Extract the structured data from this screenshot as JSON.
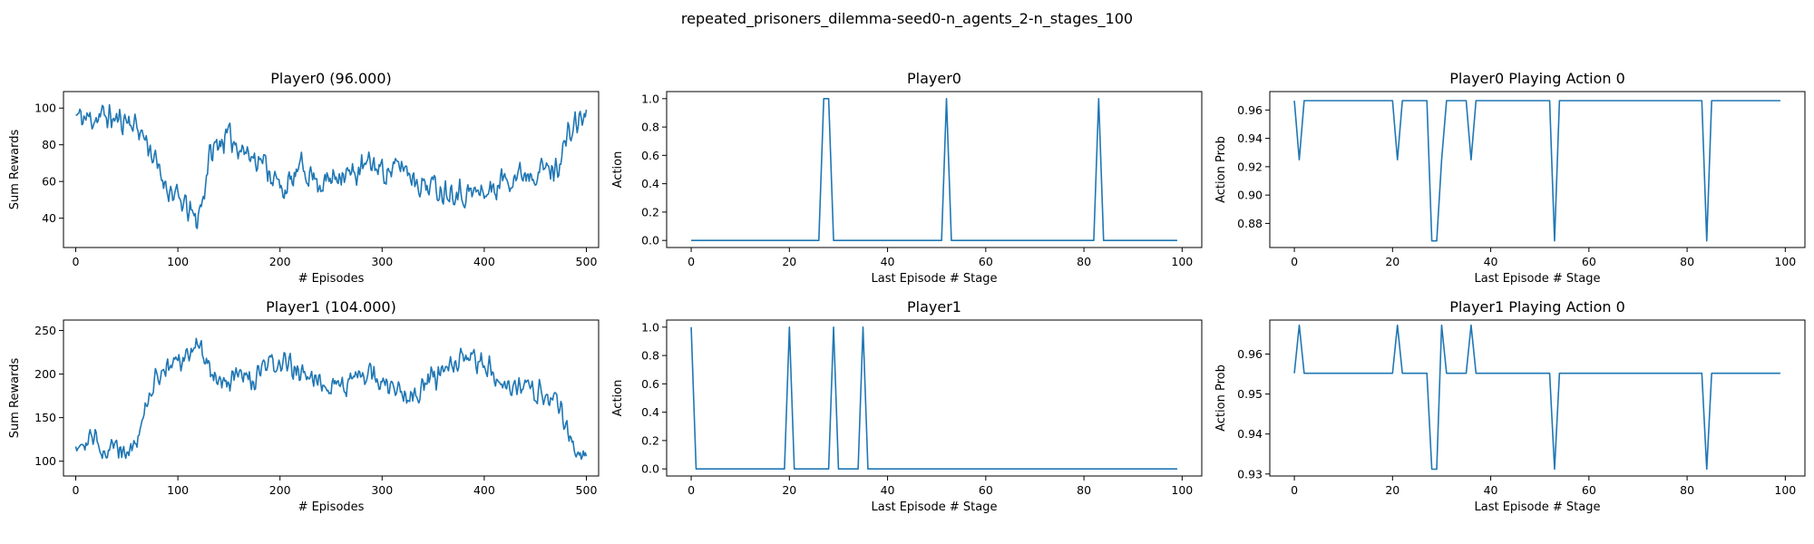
{
  "figure": {
    "suptitle": "repeated_prisoners_dilemma-seed0-n_agents_2-n_stages_100"
  },
  "colors": {
    "series": "#1f77b4",
    "axes": "#000000",
    "background": "#ffffff"
  },
  "chart_data": [
    {
      "type": "line",
      "title": "Player0 (96.000)",
      "xlabel": "# Episodes",
      "ylabel": "Sum Rewards",
      "xlim": [
        -12,
        512
      ],
      "ylim": [
        24,
        109
      ],
      "xticks": [
        0,
        100,
        200,
        300,
        400,
        500
      ],
      "xticklabels": [
        "0",
        "100",
        "200",
        "300",
        "400",
        "500"
      ],
      "yticks": [
        40,
        60,
        80,
        100
      ],
      "yticklabels": [
        "40",
        "60",
        "80",
        "100"
      ],
      "noise": {
        "seed": 11,
        "amp": 9
      },
      "series": [
        {
          "x": [
            0,
            10,
            20,
            30,
            40,
            50,
            60,
            70,
            80,
            90,
            100,
            110,
            118,
            125,
            130,
            140,
            150,
            160,
            170,
            180,
            190,
            200,
            210,
            220,
            230,
            240,
            250,
            260,
            270,
            280,
            290,
            300,
            310,
            320,
            330,
            340,
            350,
            360,
            370,
            380,
            390,
            400,
            410,
            420,
            430,
            440,
            450,
            460,
            470,
            480,
            490,
            500
          ],
          "y": [
            96,
            94,
            95,
            96,
            93,
            94,
            90,
            82,
            67,
            57,
            50,
            45,
            38,
            52,
            72,
            82,
            84,
            80,
            74,
            73,
            66,
            56,
            58,
            68,
            64,
            59,
            61,
            66,
            63,
            67,
            70,
            66,
            66,
            69,
            63,
            58,
            58,
            55,
            56,
            53,
            54,
            54,
            56,
            62,
            63,
            65,
            66,
            67,
            66,
            82,
            92,
            96
          ]
        }
      ]
    },
    {
      "type": "line",
      "title": "Player0",
      "xlabel": "Last Episode # Stage",
      "ylabel": "Action",
      "xlim": [
        -5,
        104
      ],
      "ylim": [
        -0.05,
        1.05
      ],
      "xticks": [
        0,
        20,
        40,
        60,
        80,
        100
      ],
      "xticklabels": [
        "0",
        "20",
        "40",
        "60",
        "80",
        "100"
      ],
      "yticks": [
        0,
        0.2,
        0.4,
        0.6,
        0.8,
        1.0
      ],
      "yticklabels": [
        "0.0",
        "0.2",
        "0.4",
        "0.6",
        "0.8",
        "1.0"
      ],
      "series": [
        {
          "x": [
            0,
            26,
            27,
            28,
            29,
            51,
            52,
            53,
            82,
            83,
            84,
            99
          ],
          "y": [
            0,
            0,
            1,
            1,
            0,
            0,
            1,
            0,
            0,
            1,
            0,
            0
          ]
        }
      ]
    },
    {
      "type": "line",
      "title": "Player0 Playing Action 0",
      "xlabel": "Last Episode # Stage",
      "ylabel": "Action Prob",
      "xlim": [
        -5,
        104
      ],
      "ylim": [
        0.863,
        0.973
      ],
      "xticks": [
        0,
        20,
        40,
        60,
        80,
        100
      ],
      "xticklabels": [
        "0",
        "20",
        "40",
        "60",
        "80",
        "100"
      ],
      "yticks": [
        0.88,
        0.9,
        0.92,
        0.94,
        0.96
      ],
      "yticklabels": [
        "0.88",
        "0.90",
        "0.92",
        "0.94",
        "0.96"
      ],
      "series": [
        {
          "x": [
            0,
            1,
            2,
            20,
            21,
            22,
            27,
            28,
            29,
            30,
            31,
            35,
            36,
            37,
            52,
            53,
            54,
            83,
            84,
            85,
            99
          ],
          "y": [
            0.9666,
            0.9249,
            0.9666,
            0.9666,
            0.9249,
            0.9666,
            0.9666,
            0.8677,
            0.8677,
            0.9249,
            0.9666,
            0.9666,
            0.9249,
            0.9666,
            0.9666,
            0.8677,
            0.9666,
            0.9666,
            0.8677,
            0.9666,
            0.9666
          ]
        }
      ]
    },
    {
      "type": "line",
      "title": "Player1 (104.000)",
      "xlabel": "# Episodes",
      "ylabel": "Sum Rewards",
      "xlim": [
        -12,
        512
      ],
      "ylim": [
        83,
        262
      ],
      "xticks": [
        0,
        100,
        200,
        300,
        400,
        500
      ],
      "xticklabels": [
        "0",
        "100",
        "200",
        "300",
        "400",
        "500"
      ],
      "yticks": [
        100,
        150,
        200,
        250
      ],
      "yticklabels": [
        "100",
        "150",
        "200",
        "250"
      ],
      "noise": {
        "seed": 29,
        "amp": 16
      },
      "series": [
        {
          "x": [
            0,
            10,
            20,
            30,
            40,
            50,
            60,
            70,
            80,
            90,
            100,
            110,
            118,
            125,
            135,
            145,
            155,
            165,
            175,
            185,
            195,
            205,
            215,
            225,
            235,
            245,
            255,
            265,
            275,
            285,
            295,
            305,
            315,
            325,
            335,
            345,
            355,
            365,
            375,
            385,
            395,
            405,
            415,
            425,
            435,
            445,
            455,
            465,
            475,
            485,
            492,
            500
          ],
          "y": [
            122,
            125,
            124,
            112,
            118,
            113,
            122,
            165,
            200,
            208,
            212,
            218,
            240,
            222,
            200,
            188,
            196,
            195,
            190,
            208,
            212,
            212,
            207,
            195,
            195,
            190,
            188,
            190,
            193,
            200,
            196,
            185,
            184,
            180,
            178,
            190,
            198,
            207,
            214,
            216,
            212,
            208,
            196,
            188,
            185,
            182,
            178,
            172,
            160,
            125,
            108,
            104
          ]
        }
      ]
    },
    {
      "type": "line",
      "title": "Player1",
      "xlabel": "Last Episode # Stage",
      "ylabel": "Action",
      "xlim": [
        -5,
        104
      ],
      "ylim": [
        -0.05,
        1.05
      ],
      "xticks": [
        0,
        20,
        40,
        60,
        80,
        100
      ],
      "xticklabels": [
        "0",
        "20",
        "40",
        "60",
        "80",
        "100"
      ],
      "yticks": [
        0,
        0.2,
        0.4,
        0.6,
        0.8,
        1.0
      ],
      "yticklabels": [
        "0.0",
        "0.2",
        "0.4",
        "0.6",
        "0.8",
        "1.0"
      ],
      "series": [
        {
          "x": [
            0,
            1,
            19,
            20,
            21,
            28,
            29,
            30,
            34,
            35,
            36,
            99
          ],
          "y": [
            1,
            0,
            0,
            1,
            0,
            0,
            1,
            0,
            0,
            1,
            0,
            0
          ]
        }
      ]
    },
    {
      "type": "line",
      "title": "Player1 Playing Action 0",
      "xlabel": "Last Episode # Stage",
      "ylabel": "Action Prob",
      "xlim": [
        -5,
        104
      ],
      "ylim": [
        0.9295,
        0.9685
      ],
      "xticks": [
        0,
        20,
        40,
        60,
        80,
        100
      ],
      "xticklabels": [
        "0",
        "20",
        "40",
        "60",
        "80",
        "100"
      ],
      "yticks": [
        0.93,
        0.94,
        0.95,
        0.96
      ],
      "yticklabels": [
        "0.93",
        "0.94",
        "0.95",
        "0.96"
      ],
      "series": [
        {
          "x": [
            0,
            1,
            2,
            20,
            21,
            22,
            27,
            28,
            29,
            30,
            31,
            35,
            36,
            37,
            52,
            53,
            54,
            83,
            84,
            85,
            99
          ],
          "y": [
            0.9552,
            0.9672,
            0.9552,
            0.9552,
            0.9672,
            0.9552,
            0.9552,
            0.9312,
            0.9312,
            0.9672,
            0.9552,
            0.9552,
            0.9672,
            0.9552,
            0.9552,
            0.9312,
            0.9552,
            0.9552,
            0.9312,
            0.9552,
            0.9552
          ]
        }
      ]
    }
  ]
}
